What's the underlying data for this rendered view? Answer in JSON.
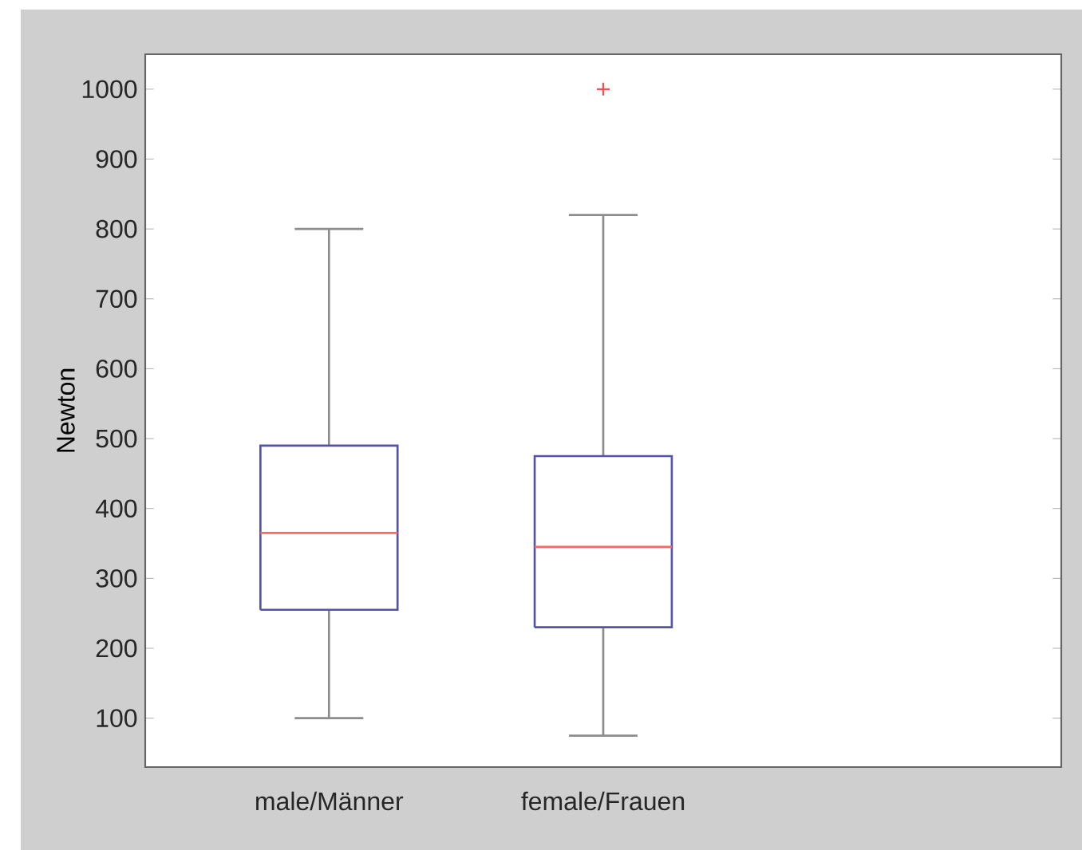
{
  "chart_data": {
    "type": "box",
    "ylabel": "Newton",
    "categories": [
      "male/Männer",
      "female/Frauen"
    ],
    "boxes": [
      {
        "low": 100,
        "q1": 255,
        "median": 365,
        "q3": 490,
        "high": 800
      },
      {
        "low": 75,
        "q1": 230,
        "median": 345,
        "q3": 475,
        "high": 820,
        "outliers": [
          1000
        ]
      }
    ],
    "ylim": [
      30,
      1050
    ],
    "yticks": [
      100,
      200,
      300,
      400,
      500,
      600,
      700,
      800,
      900,
      1000
    ],
    "grid": false
  }
}
